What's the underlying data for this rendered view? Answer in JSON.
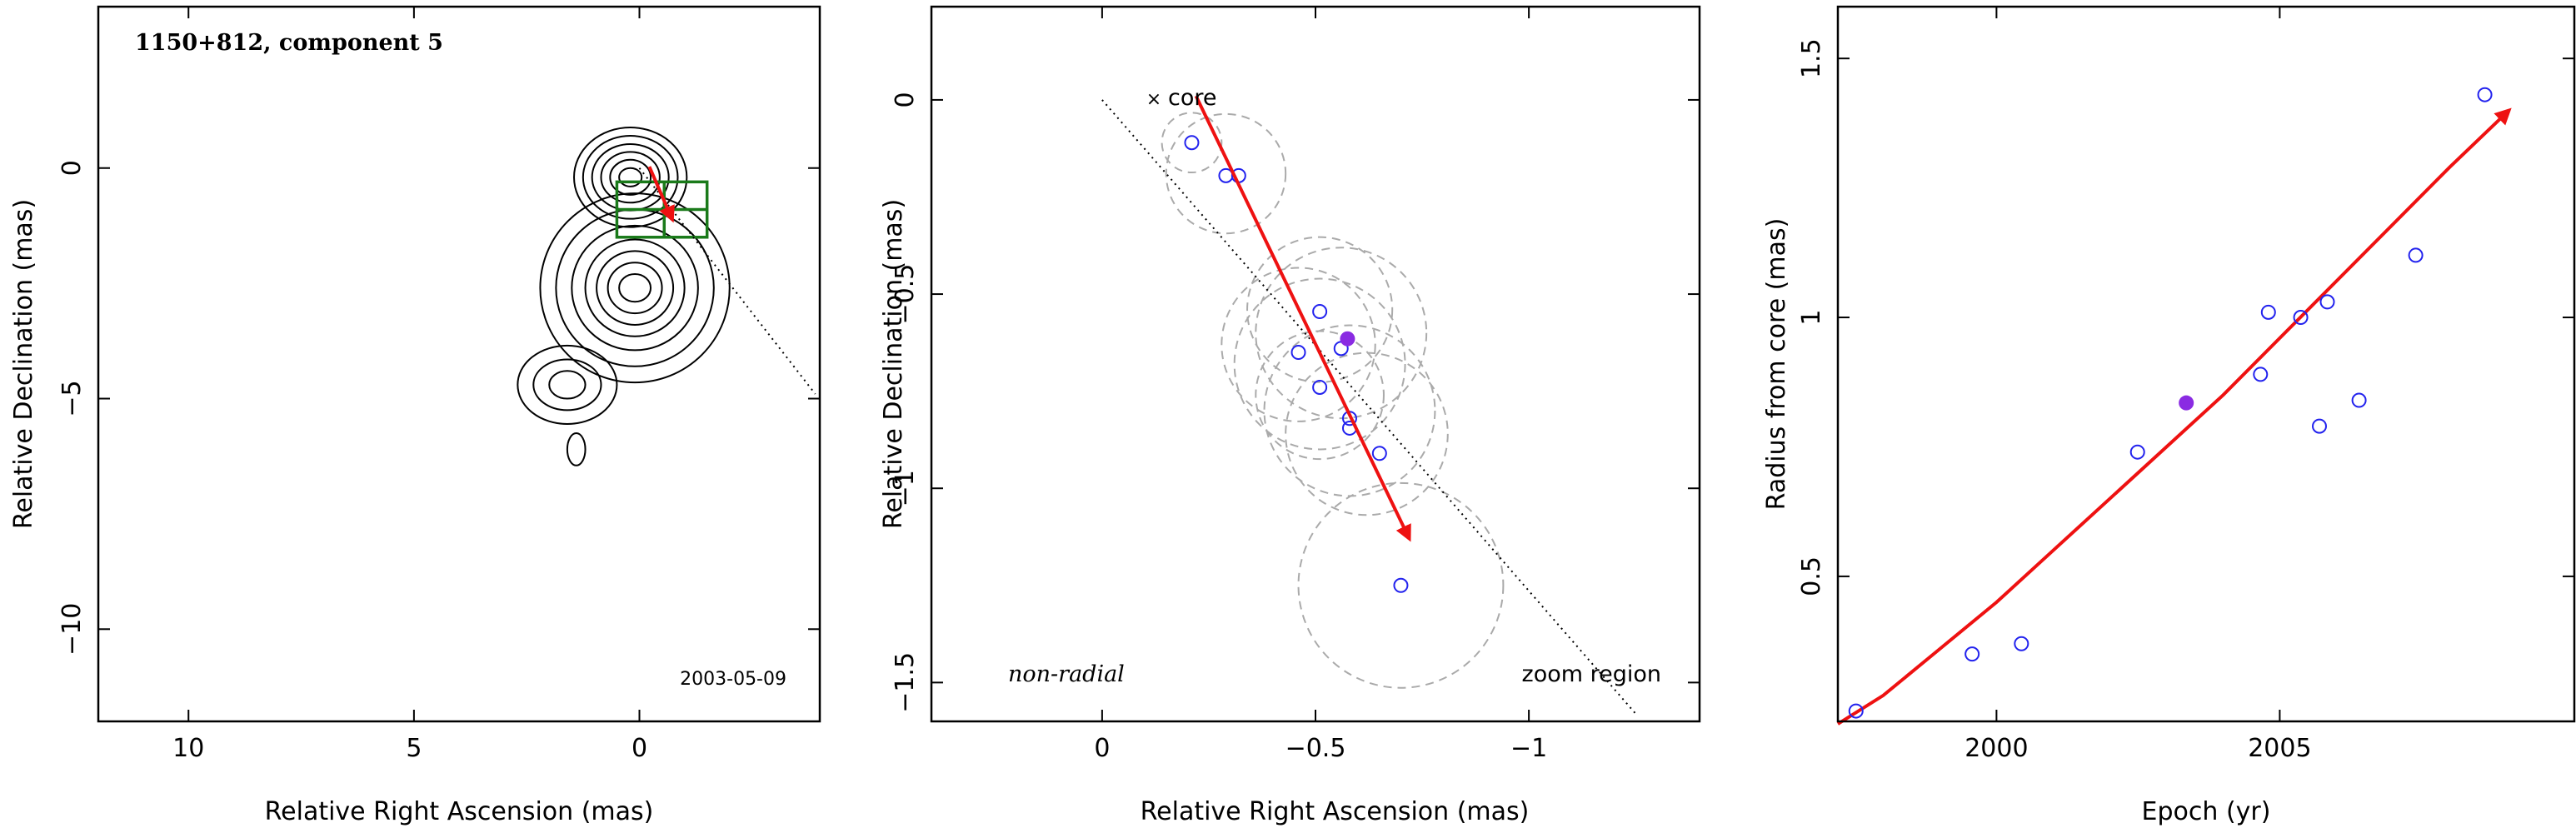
{
  "colors": {
    "arrow": "#ee1111",
    "marker": "#2222ee",
    "highlight": "#8a2be2",
    "box": "#1a7a1a",
    "ring": "#aaaaaa",
    "contour": "#000000"
  },
  "chart_data": [
    {
      "type": "scatter",
      "title": "1150+812, component 5",
      "date_label": "2003-05-09",
      "xlabel": "Relative Right Ascension (mas)",
      "ylabel": "Relative Declination (mas)",
      "xlim": [
        12,
        -4
      ],
      "ylim": [
        -12,
        3.5
      ],
      "xticks": [
        10,
        5,
        0
      ],
      "yticks": [
        0,
        -5,
        -10
      ],
      "contour_blobs": [
        {
          "x": 0.2,
          "y": -0.2,
          "rx": [
            0.25,
            0.45,
            0.65,
            0.85,
            1.05,
            1.25
          ],
          "ry": [
            0.2,
            0.38,
            0.55,
            0.72,
            0.9,
            1.08
          ]
        },
        {
          "x": 0.1,
          "y": -2.6,
          "rx": [
            0.35,
            0.6,
            0.85,
            1.1,
            1.4,
            1.75,
            2.1
          ],
          "ry": [
            0.3,
            0.55,
            0.8,
            1.05,
            1.35,
            1.7,
            2.05
          ]
        },
        {
          "x": 1.6,
          "y": -4.7,
          "rx": [
            0.4,
            0.75,
            1.1
          ],
          "ry": [
            0.3,
            0.55,
            0.85
          ]
        },
        {
          "x": 1.4,
          "y": -6.1,
          "rx": [
            0.2
          ],
          "ry": [
            0.35
          ]
        }
      ],
      "zoom_box": {
        "x1": 0.5,
        "x2": -1.5,
        "y1": -0.3,
        "y2": -1.5
      },
      "zoom_box_mid_y": -0.9,
      "zoom_box_mid_x": -0.55,
      "guide_line": [
        [
          0,
          0
        ],
        [
          -3.9,
          -4.9
        ]
      ],
      "arrow": [
        [
          -0.22,
          0.03
        ],
        [
          -0.73,
          -1.12
        ]
      ]
    },
    {
      "type": "scatter",
      "label": "non-radial",
      "core_label": "core",
      "region_label": "zoom region",
      "xlabel": "Relative Right Ascension (mas)",
      "ylabel": "Relative Declination (mas)",
      "xlim": [
        0.4,
        -1.4
      ],
      "ylim": [
        -1.6,
        0.24
      ],
      "xticks": [
        0,
        -0.5,
        -1
      ],
      "yticks": [
        0,
        -0.5,
        -1,
        -1.5
      ],
      "points": [
        {
          "x": -0.21,
          "y": -0.11
        },
        {
          "x": -0.29,
          "y": -0.195
        },
        {
          "x": -0.32,
          "y": -0.195
        },
        {
          "x": -0.51,
          "y": -0.545
        },
        {
          "x": -0.46,
          "y": -0.65
        },
        {
          "x": -0.56,
          "y": -0.64
        },
        {
          "x": -0.51,
          "y": -0.74
        },
        {
          "x": -0.58,
          "y": -0.82
        },
        {
          "x": -0.58,
          "y": -0.845
        },
        {
          "x": -0.65,
          "y": -0.91
        },
        {
          "x": -0.7,
          "y": -1.25
        }
      ],
      "highlight": {
        "x": -0.575,
        "y": -0.615
      },
      "error_circles": [
        {
          "x": -0.21,
          "y": -0.11,
          "r": 0.07
        },
        {
          "x": -0.29,
          "y": -0.19,
          "r": 0.14
        },
        {
          "x": -0.51,
          "y": -0.54,
          "r": 0.17
        },
        {
          "x": -0.56,
          "y": -0.6,
          "r": 0.2
        },
        {
          "x": -0.51,
          "y": -0.68,
          "r": 0.2
        },
        {
          "x": -0.46,
          "y": -0.63,
          "r": 0.18
        },
        {
          "x": -0.58,
          "y": -0.8,
          "r": 0.2
        },
        {
          "x": -0.51,
          "y": -0.76,
          "r": 0.15
        },
        {
          "x": -0.62,
          "y": -0.86,
          "r": 0.19
        },
        {
          "x": -0.7,
          "y": -1.25,
          "r": 0.24
        }
      ],
      "guide_line": [
        [
          0,
          0
        ],
        [
          -1.25,
          -1.58
        ]
      ],
      "arrow": [
        [
          -0.22,
          0.01
        ],
        [
          -0.72,
          -1.13
        ]
      ]
    },
    {
      "type": "scatter",
      "xlabel": "Epoch (yr)",
      "ylabel": "Radius from core (mas)",
      "xlim": [
        1997.2,
        2010.2
      ],
      "ylim": [
        0.22,
        1.6
      ],
      "xticks": [
        2000,
        2005
      ],
      "yticks": [
        0.5,
        1,
        1.5
      ],
      "points": [
        {
          "x": 1997.52,
          "y": 0.24
        },
        {
          "x": 1999.57,
          "y": 0.35
        },
        {
          "x": 2000.44,
          "y": 0.37
        },
        {
          "x": 2002.49,
          "y": 0.74
        },
        {
          "x": 2004.66,
          "y": 0.89
        },
        {
          "x": 2004.8,
          "y": 1.01
        },
        {
          "x": 2005.37,
          "y": 1.0
        },
        {
          "x": 2005.7,
          "y": 0.79
        },
        {
          "x": 2005.84,
          "y": 1.03
        },
        {
          "x": 2006.4,
          "y": 0.84
        },
        {
          "x": 2007.4,
          "y": 1.12
        },
        {
          "x": 2008.62,
          "y": 1.43
        }
      ],
      "highlight": {
        "x": 2003.35,
        "y": 0.835
      },
      "fit_curve": [
        [
          1997.2,
          0.215
        ],
        [
          1998,
          0.27
        ],
        [
          1999,
          0.36
        ],
        [
          2000,
          0.45
        ],
        [
          2001,
          0.55
        ],
        [
          2002,
          0.65
        ],
        [
          2003,
          0.75
        ],
        [
          2004,
          0.85
        ],
        [
          2005,
          0.96
        ],
        [
          2006,
          1.07
        ],
        [
          2007,
          1.18
        ],
        [
          2008,
          1.29
        ],
        [
          2009.05,
          1.4
        ]
      ]
    }
  ]
}
